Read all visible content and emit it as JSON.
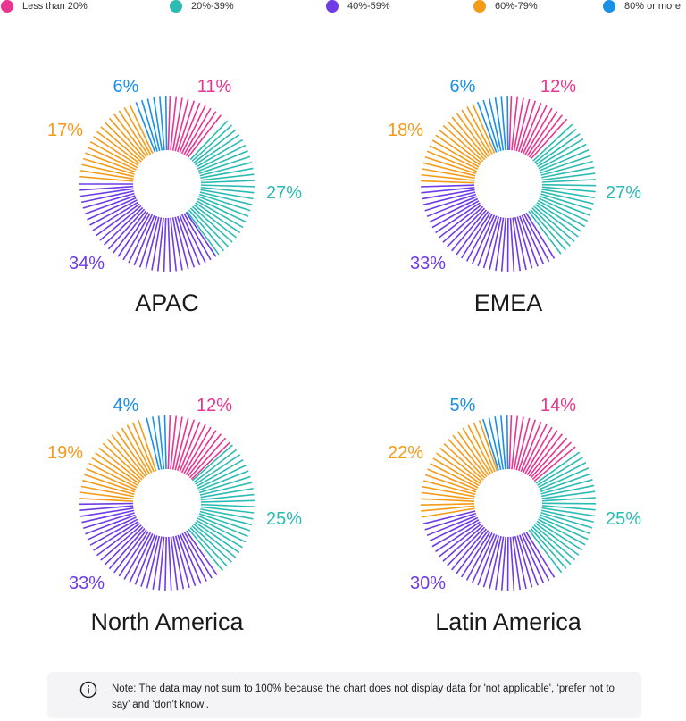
{
  "legend": [
    {
      "label": "Less than 20%",
      "color": "#e8358f"
    },
    {
      "label": "20%-39%",
      "color": "#2bbbb3"
    },
    {
      "label": "40%-59%",
      "color": "#6e3be6"
    },
    {
      "label": "60%-79%",
      "color": "#f49b1a"
    },
    {
      "label": "80% or more",
      "color": "#1a8fe8"
    }
  ],
  "chart_data": [
    {
      "type": "pie",
      "title": "APAC",
      "categories": [
        "Less than 20%",
        "20%-39%",
        "40%-59%",
        "60%-79%",
        "80% or more"
      ],
      "values": [
        11,
        27,
        34,
        17,
        6
      ],
      "value_labels": [
        "11%",
        "27%",
        "34%",
        "17%",
        "6%"
      ]
    },
    {
      "type": "pie",
      "title": "EMEA",
      "categories": [
        "Less than 20%",
        "20%-39%",
        "40%-59%",
        "60%-79%",
        "80% or more"
      ],
      "values": [
        12,
        27,
        33,
        18,
        6
      ],
      "value_labels": [
        "12%",
        "27%",
        "33%",
        "18%",
        "6%"
      ]
    },
    {
      "type": "pie",
      "title": "North America",
      "categories": [
        "Less than 20%",
        "20%-39%",
        "40%-59%",
        "60%-79%",
        "80% or more"
      ],
      "values": [
        12,
        25,
        33,
        19,
        4
      ],
      "value_labels": [
        "12%",
        "25%",
        "33%",
        "19%",
        "4%"
      ]
    },
    {
      "type": "pie",
      "title": "Latin America",
      "categories": [
        "Less than 20%",
        "20%-39%",
        "40%-59%",
        "60%-79%",
        "80% or more"
      ],
      "values": [
        14,
        25,
        30,
        22,
        5
      ],
      "value_labels": [
        "14%",
        "25%",
        "30%",
        "22%",
        "5%"
      ]
    }
  ],
  "note": {
    "icon": "info-icon",
    "text": "Note: The data may not sum to 100% because the chart does not display data for 'not applicable', ‘prefer not to say’ and ‘don’t know’."
  }
}
